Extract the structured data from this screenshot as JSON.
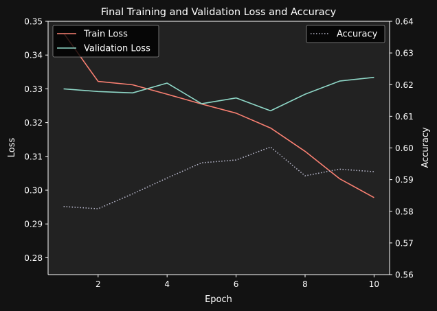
{
  "chart_data": {
    "type": "line",
    "title": "Final Training and Validation Loss and Accuracy",
    "xlabel": "Epoch",
    "ylabel": "Loss",
    "ylabel_right": "Accuracy",
    "x": [
      1,
      2,
      3,
      4,
      5,
      6,
      7,
      8,
      9,
      10
    ],
    "xlim": [
      0.55,
      10.45
    ],
    "ylim": [
      0.275,
      0.35
    ],
    "ylim_right": [
      0.56,
      0.64
    ],
    "xticks": [
      "2",
      "4",
      "6",
      "8",
      "10"
    ],
    "yticks": [
      "0.28",
      "0.29",
      "0.30",
      "0.31",
      "0.32",
      "0.33",
      "0.34",
      "0.35"
    ],
    "yticks_right": [
      "0.56",
      "0.57",
      "0.58",
      "0.59",
      "0.60",
      "0.61",
      "0.62",
      "0.63",
      "0.64"
    ],
    "grid": false,
    "series": [
      {
        "name": "Train Loss",
        "axis": "left",
        "color": "#fa8072",
        "style": "solid",
        "values": [
          0.3465,
          0.3322,
          0.3312,
          0.3284,
          0.3255,
          0.3228,
          0.3184,
          0.3115,
          0.3034,
          0.2978
        ]
      },
      {
        "name": "Validation Loss",
        "axis": "left",
        "color": "#8fd8c8",
        "style": "solid",
        "values": [
          0.33,
          0.3292,
          0.3288,
          0.3317,
          0.3256,
          0.3273,
          0.3235,
          0.3284,
          0.3323,
          0.3334
        ]
      },
      {
        "name": "Accuracy",
        "axis": "right",
        "color": "#b8b8cc",
        "style": "dotted",
        "values": [
          0.5815,
          0.5808,
          0.5855,
          0.5905,
          0.5953,
          0.5962,
          0.6003,
          0.5912,
          0.5933,
          0.5925
        ]
      }
    ],
    "legend_left": {
      "placement": "top-left",
      "entries": [
        "Train Loss",
        "Validation Loss"
      ]
    },
    "legend_right": {
      "placement": "top-right",
      "entries": [
        "Accuracy"
      ]
    }
  }
}
